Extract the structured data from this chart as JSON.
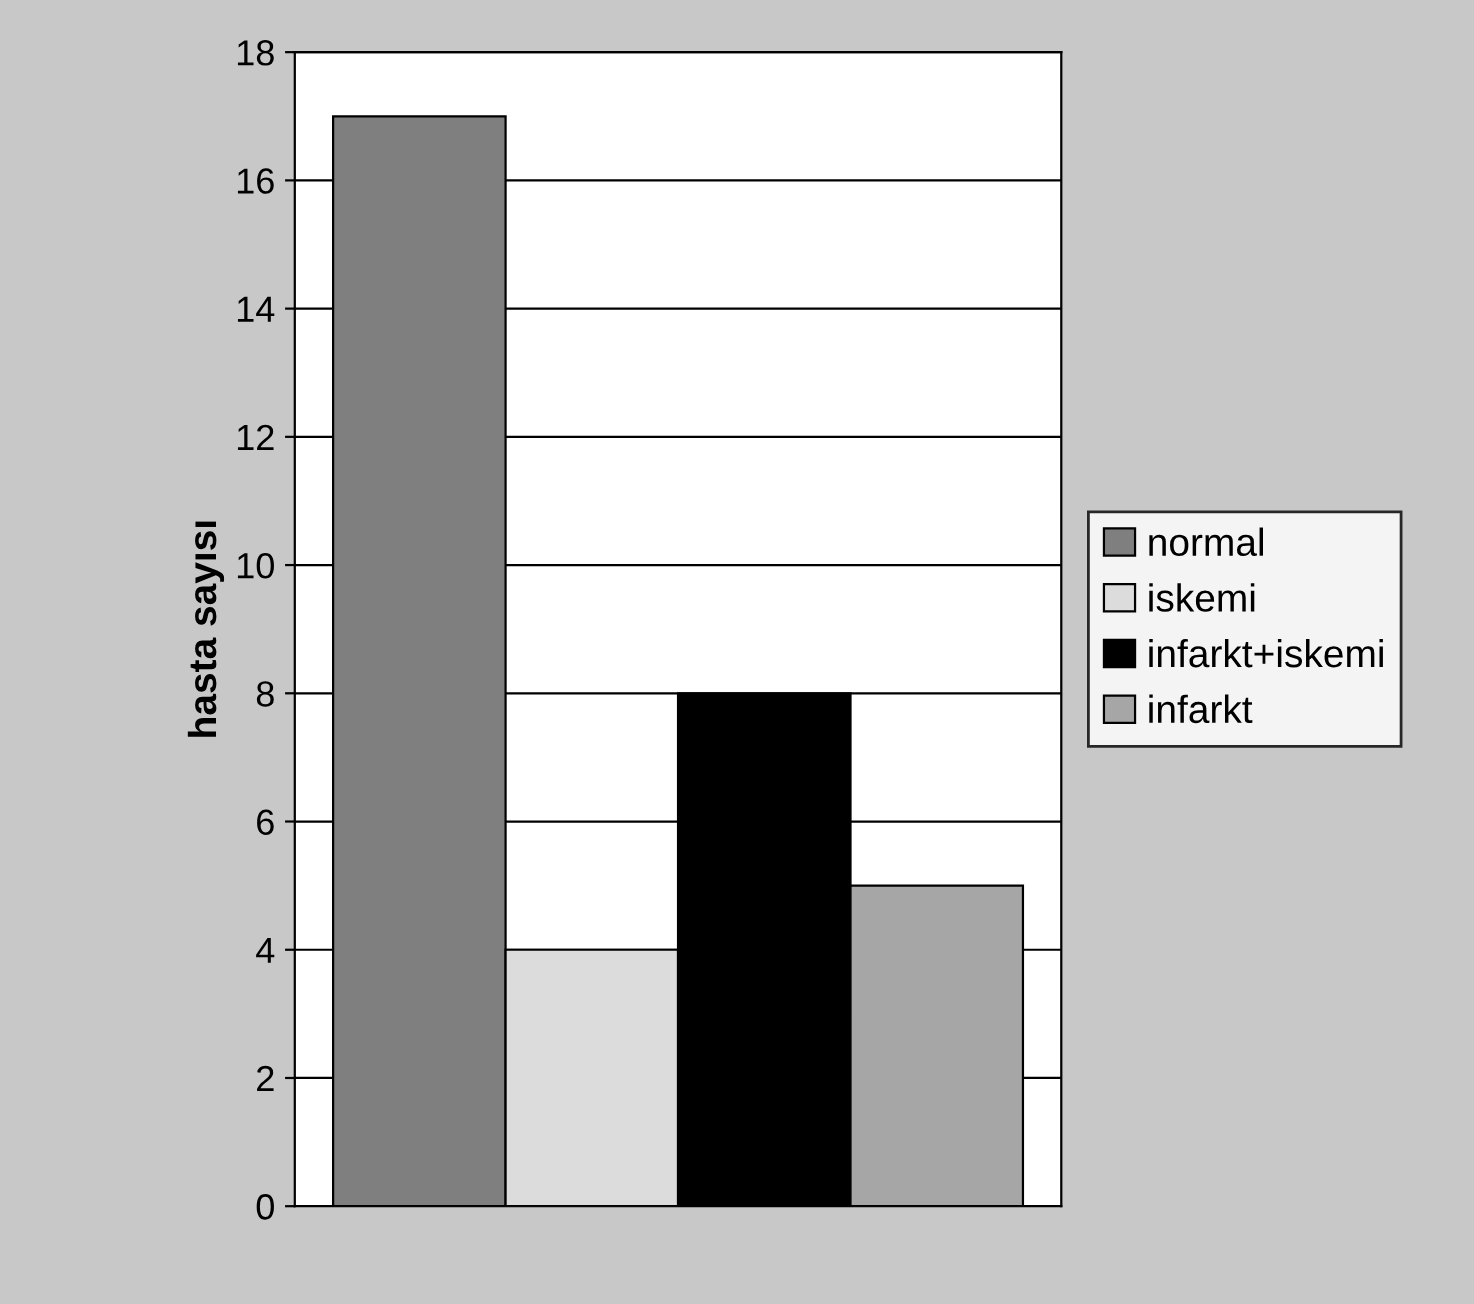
{
  "chart_data": {
    "type": "bar",
    "ylabel": "hasta sayısı",
    "categories": [
      null
    ],
    "series": [
      {
        "name": "normal",
        "color": "#7f7f7f",
        "values": [
          17
        ]
      },
      {
        "name": "iskemi",
        "color": "#dcdcdc",
        "values": [
          4
        ]
      },
      {
        "name": "infarkt+iskemi",
        "color": "#000000",
        "values": [
          8
        ]
      },
      {
        "name": "infarkt",
        "color": "#a6a6a6",
        "values": [
          5
        ]
      }
    ],
    "ylim": [
      0,
      18
    ],
    "yticks": [
      0,
      2,
      4,
      6,
      8,
      10,
      12,
      14,
      16,
      18
    ],
    "grid": "y",
    "legend": "right"
  }
}
